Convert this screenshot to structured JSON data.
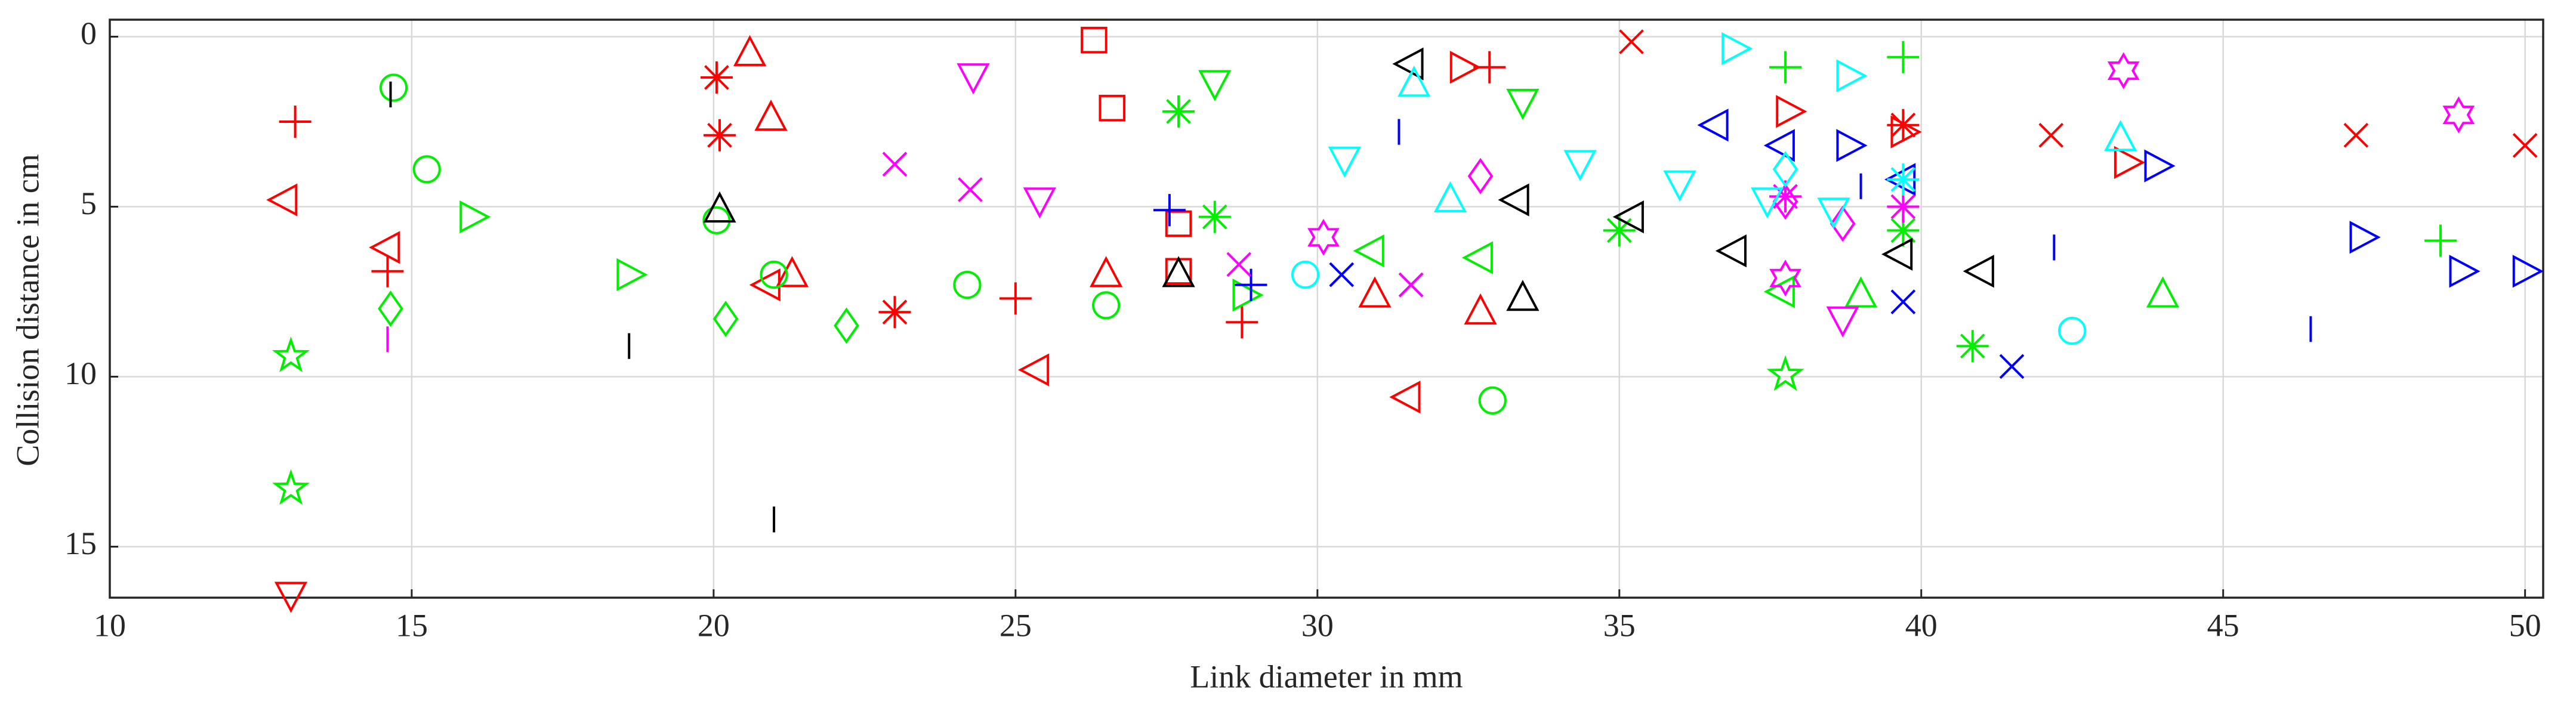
{
  "chart_data": {
    "type": "scatter",
    "xlabel": "Link diameter in mm",
    "ylabel": "Collision distance in cm",
    "xlim": [
      10,
      50.3
    ],
    "ylim": [
      -0.5,
      16.5
    ],
    "y_direction": "reverse",
    "xticks": [
      10,
      15,
      20,
      25,
      30,
      35,
      40,
      45,
      50
    ],
    "yticks": [
      0,
      5,
      10,
      15
    ],
    "grid": true,
    "box": true,
    "series": [
      {
        "color": "#ff0000",
        "marker": "+",
        "x": [
          13.07,
          14.6,
          25.0,
          28.75,
          32.85
        ],
        "values": [
          2.5,
          6.9,
          7.7,
          8.4,
          0.9
        ]
      },
      {
        "color": "#ff0000",
        "marker": "<",
        "x": [
          12.9,
          14.6,
          20.9,
          25.35,
          31.5
        ],
        "values": [
          4.8,
          6.2,
          7.3,
          9.8,
          10.6
        ]
      },
      {
        "color": "#ff0000",
        "marker": "^",
        "x": [
          20.6,
          20.95,
          21.3,
          26.5,
          30.95,
          32.7
        ],
        "values": [
          0.5,
          2.4,
          7.0,
          7.0,
          7.6,
          8.1
        ]
      },
      {
        "color": "#ff0000",
        "marker": "*",
        "x": [
          20.05,
          20.1,
          23.0,
          39.7
        ],
        "values": [
          1.2,
          2.9,
          8.1,
          2.6
        ]
      },
      {
        "color": "#ff0000",
        "marker": "s",
        "x": [
          26.3,
          26.6,
          27.7,
          27.7
        ],
        "values": [
          0.1,
          2.1,
          6.9,
          5.5
        ]
      },
      {
        "color": "#ff0000",
        "marker": ">",
        "x": [
          32.4,
          37.8,
          39.7,
          43.4
        ],
        "values": [
          0.9,
          2.2,
          2.8,
          3.7
        ]
      },
      {
        "color": "#ff0000",
        "marker": "x",
        "x": [
          35.2,
          42.15,
          47.2,
          50.0
        ],
        "values": [
          0.15,
          2.9,
          2.9,
          3.2
        ]
      },
      {
        "color": "#ff0000",
        "marker": "v",
        "x": [
          13.0
        ],
        "values": [
          16.4
        ]
      },
      {
        "color": "#00ee00",
        "marker": "o",
        "x": [
          14.7,
          15.25,
          20.05,
          21.0,
          24.2,
          26.5,
          32.9
        ],
        "values": [
          1.5,
          3.9,
          5.4,
          7.0,
          7.3,
          7.9,
          10.7
        ]
      },
      {
        "color": "#00ee00",
        "marker": ">",
        "x": [
          16.0,
          18.6,
          28.8
        ],
        "values": [
          5.3,
          7.0,
          7.6
        ]
      },
      {
        "color": "#00ee00",
        "marker": "p",
        "x": [
          13.0,
          13.0,
          37.75
        ],
        "values": [
          9.4,
          13.3,
          9.95
        ]
      },
      {
        "color": "#00ee00",
        "marker": "d",
        "x": [
          14.65,
          20.2,
          22.2
        ],
        "values": [
          8.0,
          8.3,
          8.5
        ]
      },
      {
        "color": "#00ee00",
        "marker": "v",
        "x": [
          28.3,
          33.4
        ],
        "values": [
          1.35,
          1.9
        ]
      },
      {
        "color": "#00ee00",
        "marker": "*",
        "x": [
          27.7,
          28.3,
          35.0,
          40.85,
          39.7
        ],
        "values": [
          2.2,
          5.3,
          5.7,
          9.1,
          5.7
        ]
      },
      {
        "color": "#00ee00",
        "marker": "+",
        "x": [
          37.75,
          39.7,
          48.6
        ],
        "values": [
          0.9,
          0.6,
          6.0
        ]
      },
      {
        "color": "#00ee00",
        "marker": "<",
        "x": [
          30.9,
          32.7,
          37.7
        ],
        "values": [
          6.3,
          6.5,
          7.5
        ]
      },
      {
        "color": "#00ee00",
        "marker": "^",
        "x": [
          39.0,
          44.0
        ],
        "values": [
          7.6,
          7.6
        ]
      },
      {
        "color": "#000000",
        "marker": "|",
        "x": [
          14.65,
          18.6,
          21.0
        ],
        "values": [
          1.7,
          9.1,
          14.2
        ]
      },
      {
        "color": "#000000",
        "marker": "^",
        "x": [
          20.1,
          27.7,
          33.4
        ],
        "values": [
          5.1,
          7.0,
          7.7
        ]
      },
      {
        "color": "#000000",
        "marker": "<",
        "x": [
          31.55,
          33.3,
          35.2,
          36.9,
          39.65,
          41.0
        ],
        "values": [
          0.8,
          4.8,
          5.3,
          6.3,
          6.4,
          6.9
        ]
      },
      {
        "color": "#0000ff",
        "marker": "+",
        "x": [
          27.55,
          28.9
        ],
        "values": [
          5.1,
          7.3
        ]
      },
      {
        "color": "#0000ff",
        "marker": "x",
        "x": [
          30.4,
          31.55,
          39.7,
          41.5
        ],
        "values": [
          7.0,
          7.3,
          7.8,
          9.7
        ]
      },
      {
        "color": "#0000ff",
        "marker": "<",
        "x": [
          36.6,
          37.7,
          39.7
        ],
        "values": [
          2.6,
          3.2,
          4.2
        ]
      },
      {
        "color": "#0000ff",
        "marker": ">",
        "x": [
          38.8,
          43.9,
          47.3,
          48.95,
          50.0
        ],
        "values": [
          3.2,
          3.8,
          5.9,
          6.9,
          6.9
        ]
      },
      {
        "color": "#0000ff",
        "marker": "|",
        "x": [
          31.35,
          42.2,
          46.45,
          39.0
        ],
        "values": [
          2.8,
          6.2,
          8.6,
          4.4
        ]
      },
      {
        "color": "#ff00ff",
        "marker": "v",
        "x": [
          24.3,
          25.4,
          38.7
        ],
        "values": [
          1.15,
          4.8,
          8.3
        ]
      },
      {
        "color": "#ff00ff",
        "marker": "x",
        "x": [
          23.0,
          24.25,
          28.7,
          31.55
        ],
        "values": [
          3.75,
          4.5,
          6.7,
          7.3
        ]
      },
      {
        "color": "#ff00ff",
        "marker": "h",
        "x": [
          30.1,
          37.75,
          43.35,
          48.9
        ],
        "values": [
          5.9,
          7.1,
          1.0,
          2.3
        ]
      },
      {
        "color": "#ff00ff",
        "marker": "d",
        "x": [
          32.7,
          37.75,
          38.7
        ],
        "values": [
          4.1,
          4.85,
          5.5
        ]
      },
      {
        "color": "#ff00ff",
        "marker": "*",
        "x": [
          37.75,
          39.7
        ],
        "values": [
          4.7,
          5.0
        ]
      },
      {
        "color": "#ff00ff",
        "marker": "|",
        "x": [
          14.6
        ],
        "values": [
          8.9
        ]
      },
      {
        "color": "#00ffff",
        "marker": ">",
        "x": [
          36.9,
          38.8
        ],
        "values": [
          0.35,
          1.15
        ]
      },
      {
        "color": "#00ffff",
        "marker": "^",
        "x": [
          31.6,
          32.2,
          43.3
        ],
        "values": [
          1.4,
          4.8,
          3.0
        ]
      },
      {
        "color": "#00ffff",
        "marker": "v",
        "x": [
          30.45,
          34.35,
          36.0,
          37.45,
          38.55
        ],
        "values": [
          3.6,
          3.7,
          4.3,
          4.8,
          5.1
        ]
      },
      {
        "color": "#00ffff",
        "marker": "o",
        "x": [
          29.8,
          42.5
        ],
        "values": [
          7.0,
          8.65
        ]
      },
      {
        "color": "#00ffff",
        "marker": "d",
        "x": [
          37.75
        ],
        "values": [
          3.9
        ]
      },
      {
        "color": "#00ffff",
        "marker": "*",
        "x": [
          39.7
        ],
        "values": [
          4.2
        ]
      }
    ]
  }
}
